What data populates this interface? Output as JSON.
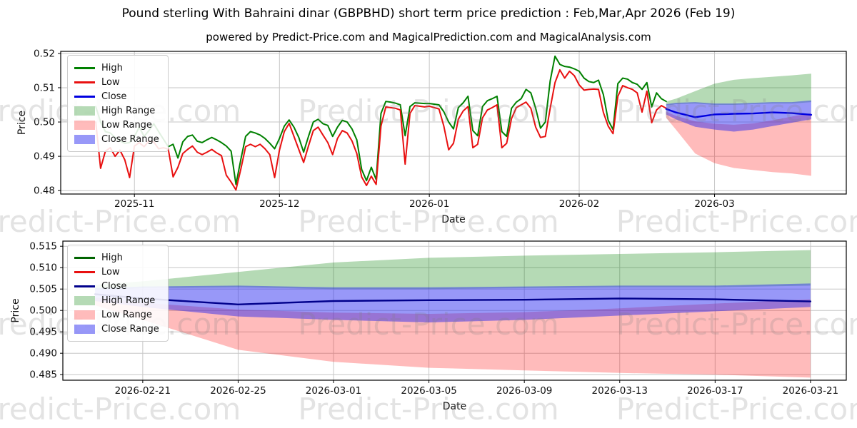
{
  "title": "Pound sterling With Bahraini dinar (GBPBHD) short term price prediction : Feb,Mar,Apr 2026 (Feb 19)",
  "subtitle": "powered by Predict-Price.com and MagicalPrediction.com and MagicalAnalysis.com",
  "watermark": {
    "text": "Predict-Price.com"
  },
  "legend": {
    "items": [
      "High",
      "Low",
      "Close",
      "High Range",
      "Low Range",
      "Close Range"
    ]
  },
  "colors": {
    "high_line_top": "#008000",
    "low_line_top": "#e81010",
    "close_line_top": "#0000e0",
    "high_line_bottom": "#006400",
    "low_line_bottom": "#e81010",
    "close_line_bottom": "#00008b",
    "high_range_fill": "rgba(0,128,0,0.29)",
    "low_range_fill": "rgba(255,10,10,0.28)",
    "close_range_fill": "rgba(40,40,240,0.48)",
    "grid": "#c6c6c6",
    "spine": "#000000"
  },
  "chart_data": [
    {
      "type": "line",
      "xlabel": "Date",
      "ylabel": "Price",
      "ylim": [
        0.479,
        0.5206
      ],
      "xlim_days": [
        -7.25,
        155.25
      ],
      "yticks": [
        {
          "v": 0.48,
          "label": "0.48"
        },
        {
          "v": 0.49,
          "label": "0.49"
        },
        {
          "v": 0.5,
          "label": "0.50"
        },
        {
          "v": 0.51,
          "label": "0.51"
        },
        {
          "v": 0.52,
          "label": "0.52"
        }
      ],
      "xticks": [
        {
          "day": 8,
          "label": "2025-11"
        },
        {
          "day": 38,
          "label": "2025-12"
        },
        {
          "day": 69,
          "label": "2026-01"
        },
        {
          "day": 100,
          "label": "2026-02"
        },
        {
          "day": 128,
          "label": "2026-03"
        }
      ],
      "history": {
        "start_date": "2025-10-24",
        "freq": "daily",
        "days": [
          0,
          1,
          2,
          3,
          4,
          5,
          6,
          7,
          8,
          9,
          10,
          11,
          12,
          13,
          14,
          15,
          16,
          17,
          18,
          19,
          20,
          21,
          22,
          23,
          24,
          25,
          26,
          27,
          28,
          29,
          30,
          31,
          32,
          33,
          34,
          35,
          36,
          37,
          38,
          39,
          40,
          41,
          42,
          43,
          44,
          45,
          46,
          47,
          48,
          49,
          50,
          51,
          52,
          53,
          54,
          55,
          56,
          57,
          58,
          59,
          60,
          61,
          62,
          63,
          64,
          65,
          66,
          67,
          68,
          69,
          70,
          71,
          72,
          73,
          74,
          75,
          76,
          77,
          78,
          79,
          80,
          81,
          82,
          83,
          84,
          85,
          86,
          87,
          88,
          89,
          90,
          91,
          92,
          93,
          94,
          95,
          96,
          97,
          98,
          99,
          100,
          101,
          102,
          103,
          104,
          105,
          106,
          107,
          108,
          109,
          110,
          111,
          112,
          113,
          114,
          115,
          116,
          117,
          118
        ],
        "high": [
          0.5045,
          0.5,
          0.4972,
          0.4968,
          0.4955,
          0.4945,
          0.4938,
          0.494,
          0.4958,
          0.4985,
          0.4958,
          0.4975,
          0.4995,
          0.4972,
          0.495,
          0.4928,
          0.4935,
          0.4895,
          0.4942,
          0.4958,
          0.4962,
          0.4944,
          0.494,
          0.4948,
          0.4955,
          0.4948,
          0.494,
          0.493,
          0.4915,
          0.4818,
          0.489,
          0.4958,
          0.4972,
          0.4968,
          0.4962,
          0.4952,
          0.4938,
          0.4922,
          0.4952,
          0.4988,
          0.5006,
          0.4985,
          0.4955,
          0.4912,
          0.4958,
          0.5,
          0.5008,
          0.4995,
          0.499,
          0.4958,
          0.4985,
          0.5005,
          0.5,
          0.498,
          0.4948,
          0.4862,
          0.4829,
          0.4868,
          0.4832,
          0.5025,
          0.506,
          0.5058,
          0.5055,
          0.505,
          0.496,
          0.5045,
          0.5056,
          0.5055,
          0.5054,
          0.5054,
          0.5052,
          0.505,
          0.503,
          0.5,
          0.498,
          0.5042,
          0.5056,
          0.5075,
          0.4975,
          0.496,
          0.5045,
          0.5062,
          0.5068,
          0.5075,
          0.4972,
          0.4958,
          0.504,
          0.5058,
          0.5068,
          0.5095,
          0.5085,
          0.504,
          0.4982,
          0.5,
          0.512,
          0.5192,
          0.5168,
          0.5162,
          0.516,
          0.5155,
          0.5148,
          0.5128,
          0.5118,
          0.5115,
          0.5122,
          0.508,
          0.5005,
          0.4978,
          0.5112,
          0.5128,
          0.5125,
          0.5115,
          0.511,
          0.5095,
          0.5115,
          0.5044,
          0.5085,
          0.5068,
          0.506
        ],
        "low": [
          0.5,
          0.4865,
          0.4915,
          0.4925,
          0.49,
          0.4918,
          0.489,
          0.4838,
          0.493,
          0.494,
          0.4928,
          0.4945,
          0.4942,
          0.4922,
          0.4925,
          0.4921,
          0.484,
          0.4868,
          0.4908,
          0.492,
          0.493,
          0.4912,
          0.4905,
          0.4912,
          0.492,
          0.491,
          0.4902,
          0.4845,
          0.4825,
          0.4802,
          0.4862,
          0.4928,
          0.4935,
          0.4928,
          0.4935,
          0.4922,
          0.4905,
          0.4838,
          0.4918,
          0.4972,
          0.4996,
          0.4958,
          0.492,
          0.4882,
          0.493,
          0.4975,
          0.4985,
          0.4962,
          0.494,
          0.4905,
          0.4952,
          0.4975,
          0.4968,
          0.4945,
          0.4908,
          0.484,
          0.4815,
          0.4842,
          0.4818,
          0.4988,
          0.5044,
          0.5042,
          0.504,
          0.5035,
          0.4877,
          0.5025,
          0.5048,
          0.5046,
          0.5044,
          0.5046,
          0.5042,
          0.5038,
          0.4988,
          0.4919,
          0.4938,
          0.5008,
          0.5032,
          0.5045,
          0.4925,
          0.4935,
          0.5012,
          0.5035,
          0.5042,
          0.505,
          0.4925,
          0.4938,
          0.501,
          0.5042,
          0.505,
          0.5058,
          0.504,
          0.4985,
          0.4955,
          0.4958,
          0.504,
          0.5115,
          0.5152,
          0.5128,
          0.5148,
          0.5135,
          0.5108,
          0.5093,
          0.5095,
          0.5096,
          0.5095,
          0.5028,
          0.4988,
          0.4966,
          0.5075,
          0.5106,
          0.51,
          0.5095,
          0.5085,
          0.5029,
          0.509,
          0.4998,
          0.5035,
          0.5048,
          0.504
        ]
      },
      "prediction_day_offset": 118,
      "prediction": {
        "dates": [
          "2026-02-19",
          "2026-02-21",
          "2026-02-25",
          "2026-03-01",
          "2026-03-05",
          "2026-03-09",
          "2026-03-13",
          "2026-03-17",
          "2026-03-21"
        ],
        "days": [
          0,
          2,
          6,
          10,
          14,
          18,
          22,
          26,
          30
        ],
        "close": [
          0.5038,
          0.5028,
          0.5014,
          0.5022,
          0.5024,
          0.5025,
          0.5028,
          0.5026,
          0.5021
        ],
        "close_upper": [
          0.5052,
          0.5056,
          0.5058,
          0.5054,
          0.5054,
          0.5056,
          0.5058,
          0.5058,
          0.5063
        ],
        "close_lower": [
          0.5022,
          0.5008,
          0.4986,
          0.4978,
          0.4972,
          0.4978,
          0.4988,
          0.4998,
          0.5008
        ],
        "high_upper": [
          0.506,
          0.5068,
          0.509,
          0.5112,
          0.5123,
          0.5128,
          0.5132,
          0.5136,
          0.5141
        ],
        "high_lower": [
          0.5048,
          0.5052,
          0.5054,
          0.505,
          0.505,
          0.5052,
          0.5054,
          0.5054,
          0.5058
        ],
        "low_upper": [
          0.503,
          0.5018,
          0.5002,
          0.4995,
          0.4992,
          0.4996,
          0.5005,
          0.5016,
          0.5026
        ],
        "low_lower": [
          0.5012,
          0.4978,
          0.4908,
          0.488,
          0.4866,
          0.486,
          0.4854,
          0.485,
          0.4843
        ]
      }
    },
    {
      "type": "area",
      "xlabel": "Date",
      "ylabel": "Price",
      "ylim": [
        0.4837,
        0.5162
      ],
      "xlim_days": [
        -1.35,
        31.5
      ],
      "yticks": [
        {
          "v": 0.485,
          "label": "0.485"
        },
        {
          "v": 0.49,
          "label": "0.490"
        },
        {
          "v": 0.495,
          "label": "0.495"
        },
        {
          "v": 0.5,
          "label": "0.500"
        },
        {
          "v": 0.505,
          "label": "0.505"
        },
        {
          "v": 0.51,
          "label": "0.510"
        },
        {
          "v": 0.515,
          "label": "0.515"
        }
      ],
      "xticks": [
        {
          "day": 2,
          "label": "2026-02-21"
        },
        {
          "day": 6,
          "label": "2026-02-25"
        },
        {
          "day": 10,
          "label": "2026-03-01"
        },
        {
          "day": 14,
          "label": "2026-03-05"
        },
        {
          "day": 18,
          "label": "2026-03-09"
        },
        {
          "day": 22,
          "label": "2026-03-13"
        },
        {
          "day": 26,
          "label": "2026-03-17"
        },
        {
          "day": 30,
          "label": "2026-03-21"
        }
      ],
      "prediction_day_offset": 0,
      "prediction": {
        "dates": [
          "2026-02-19",
          "2026-02-21",
          "2026-02-25",
          "2026-03-01",
          "2026-03-05",
          "2026-03-09",
          "2026-03-13",
          "2026-03-17",
          "2026-03-21"
        ],
        "days": [
          0,
          2,
          6,
          10,
          14,
          18,
          22,
          26,
          30
        ],
        "close": [
          0.5038,
          0.5028,
          0.5014,
          0.5022,
          0.5024,
          0.5025,
          0.5028,
          0.5026,
          0.5021
        ],
        "close_upper": [
          0.5052,
          0.5056,
          0.5058,
          0.5054,
          0.5054,
          0.5056,
          0.5058,
          0.5058,
          0.5063
        ],
        "close_lower": [
          0.5022,
          0.5008,
          0.4986,
          0.4978,
          0.4972,
          0.4978,
          0.4988,
          0.4998,
          0.5008
        ],
        "high_upper": [
          0.506,
          0.5068,
          0.509,
          0.5112,
          0.5123,
          0.5128,
          0.5132,
          0.5136,
          0.5141
        ],
        "high_lower": [
          0.5048,
          0.5052,
          0.5054,
          0.505,
          0.505,
          0.5052,
          0.5054,
          0.5054,
          0.5058
        ],
        "low_upper": [
          0.503,
          0.5018,
          0.5002,
          0.4995,
          0.4992,
          0.4996,
          0.5005,
          0.5016,
          0.5026
        ],
        "low_lower": [
          0.5012,
          0.4978,
          0.4908,
          0.488,
          0.4866,
          0.486,
          0.4854,
          0.485,
          0.4843
        ]
      }
    }
  ]
}
